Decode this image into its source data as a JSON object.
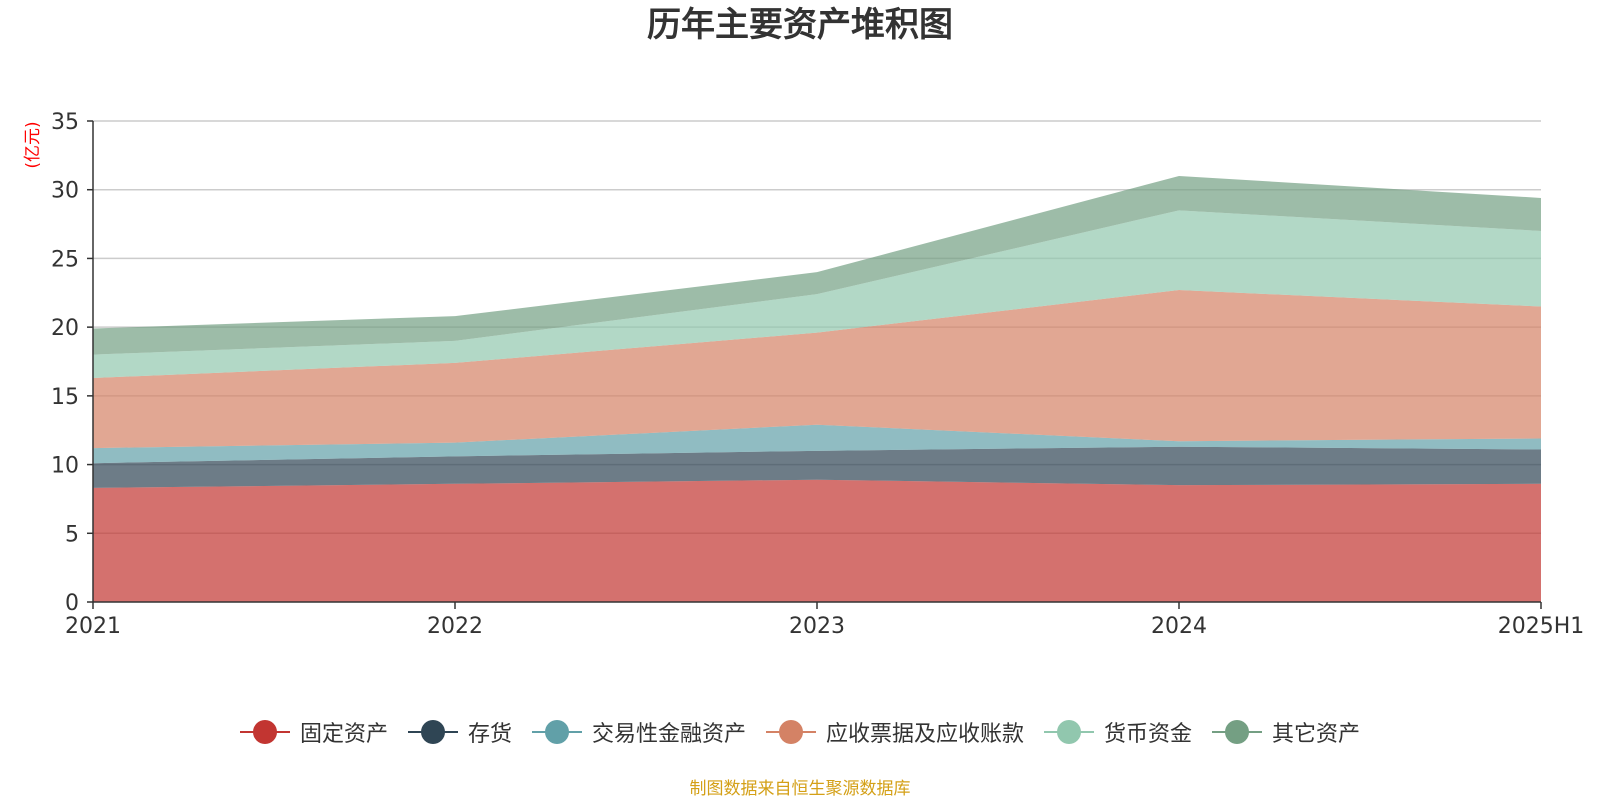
{
  "chart_data": {
    "type": "area",
    "title": "历年主要资产堆积图",
    "ylabel": "(亿元)",
    "xlabel": "",
    "categories": [
      "2021",
      "2022",
      "2023",
      "2024",
      "2025H1"
    ],
    "ylim": [
      0,
      35
    ],
    "yticks": [
      0,
      5,
      10,
      15,
      20,
      25,
      30,
      35
    ],
    "stacked": true,
    "grid": true,
    "legend_position": "bottom",
    "series": [
      {
        "name": "固定资产",
        "color": "#c23531",
        "values": [
          8.3,
          8.6,
          8.9,
          8.5,
          8.6
        ]
      },
      {
        "name": "存货",
        "color": "#2f4554",
        "values": [
          1.8,
          2.0,
          2.1,
          2.8,
          2.5
        ]
      },
      {
        "name": "交易性金融资产",
        "color": "#61a0a8",
        "values": [
          1.1,
          1.0,
          1.9,
          0.4,
          0.8
        ]
      },
      {
        "name": "应收票据及应收账款",
        "color": "#d48265",
        "values": [
          5.1,
          5.8,
          6.7,
          11.0,
          9.6
        ]
      },
      {
        "name": "货币资金",
        "color": "#91c7ae",
        "values": [
          1.7,
          1.6,
          2.8,
          5.8,
          5.5
        ]
      },
      {
        "name": "其它资产",
        "color": "#749f83",
        "values": [
          1.9,
          1.8,
          1.6,
          2.5,
          2.4
        ]
      }
    ]
  },
  "footer": {
    "source": "制图数据来自恒生聚源数据库",
    "source_color": "#d4a017"
  },
  "axis_color": "#333333",
  "grid_color": "#cccccc",
  "ylabel_color": "#ff0000"
}
